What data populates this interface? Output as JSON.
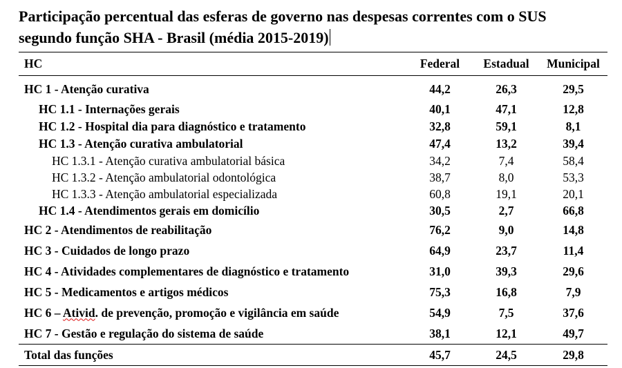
{
  "title_line1": "Participação percentual das esferas de governo nas despesas correntes com o SUS",
  "title_line2": "segundo função SHA - Brasil (média 2015-2019)",
  "headers": {
    "label": "HC",
    "federal": "Federal",
    "estadual": "Estadual",
    "municipal": "Municipal"
  },
  "rows": [
    {
      "label": "HC 1 - Atenção curativa",
      "federal": "44,2",
      "estadual": "26,3",
      "municipal": "29,5"
    },
    {
      "label": "HC 1.1 - Internações gerais",
      "federal": "40,1",
      "estadual": "47,1",
      "municipal": "12,8"
    },
    {
      "label": "HC 1.2 - Hospital dia para diagnóstico e tratamento",
      "federal": "32,8",
      "estadual": "59,1",
      "municipal": "8,1"
    },
    {
      "label": "HC 1.3 - Atenção curativa ambulatorial",
      "federal": "47,4",
      "estadual": "13,2",
      "municipal": "39,4"
    },
    {
      "label": "HC 1.3.1 - Atenção curativa ambulatorial básica",
      "federal": "34,2",
      "estadual": "7,4",
      "municipal": "58,4"
    },
    {
      "label": "HC 1.3.2 - Atenção ambulatorial odontológica",
      "federal": "38,7",
      "estadual": "8,0",
      "municipal": "53,3"
    },
    {
      "label": "HC 1.3.3 - Atenção ambulatorial especializada",
      "federal": "60,8",
      "estadual": "19,1",
      "municipal": "20,1"
    },
    {
      "label": "HC 1.4 - Atendimentos gerais em domicílio",
      "federal": "30,5",
      "estadual": "2,7",
      "municipal": "66,8"
    },
    {
      "label": "HC 2 - Atendimentos de reabilitação",
      "federal": "76,2",
      "estadual": "9,0",
      "municipal": "14,8"
    },
    {
      "label": "HC 3 - Cuidados de longo prazo",
      "federal": "64,9",
      "estadual": "23,7",
      "municipal": "11,4"
    },
    {
      "label": "HC 4 - Atividades complementares de diagnóstico e tratamento",
      "federal": "31,0",
      "estadual": "39,3",
      "municipal": "29,6"
    },
    {
      "label": "HC 5 - Medicamentos e artigos médicos",
      "federal": "75,3",
      "estadual": "16,8",
      "municipal": "7,9"
    },
    {
      "label_pre": "HC 6 – ",
      "label_flag": "Ativid",
      "label_post": ". de prevenção, promoção e vigilância em saúde",
      "federal": "54,9",
      "estadual": "7,5",
      "municipal": "37,6"
    },
    {
      "label": "HC 7 - Gestão e regulação do sistema de saúde",
      "federal": "38,1",
      "estadual": "12,1",
      "municipal": "49,7"
    }
  ],
  "total": {
    "label": "Total das funções",
    "federal": "45,7",
    "estadual": "24,5",
    "municipal": "29,8"
  }
}
